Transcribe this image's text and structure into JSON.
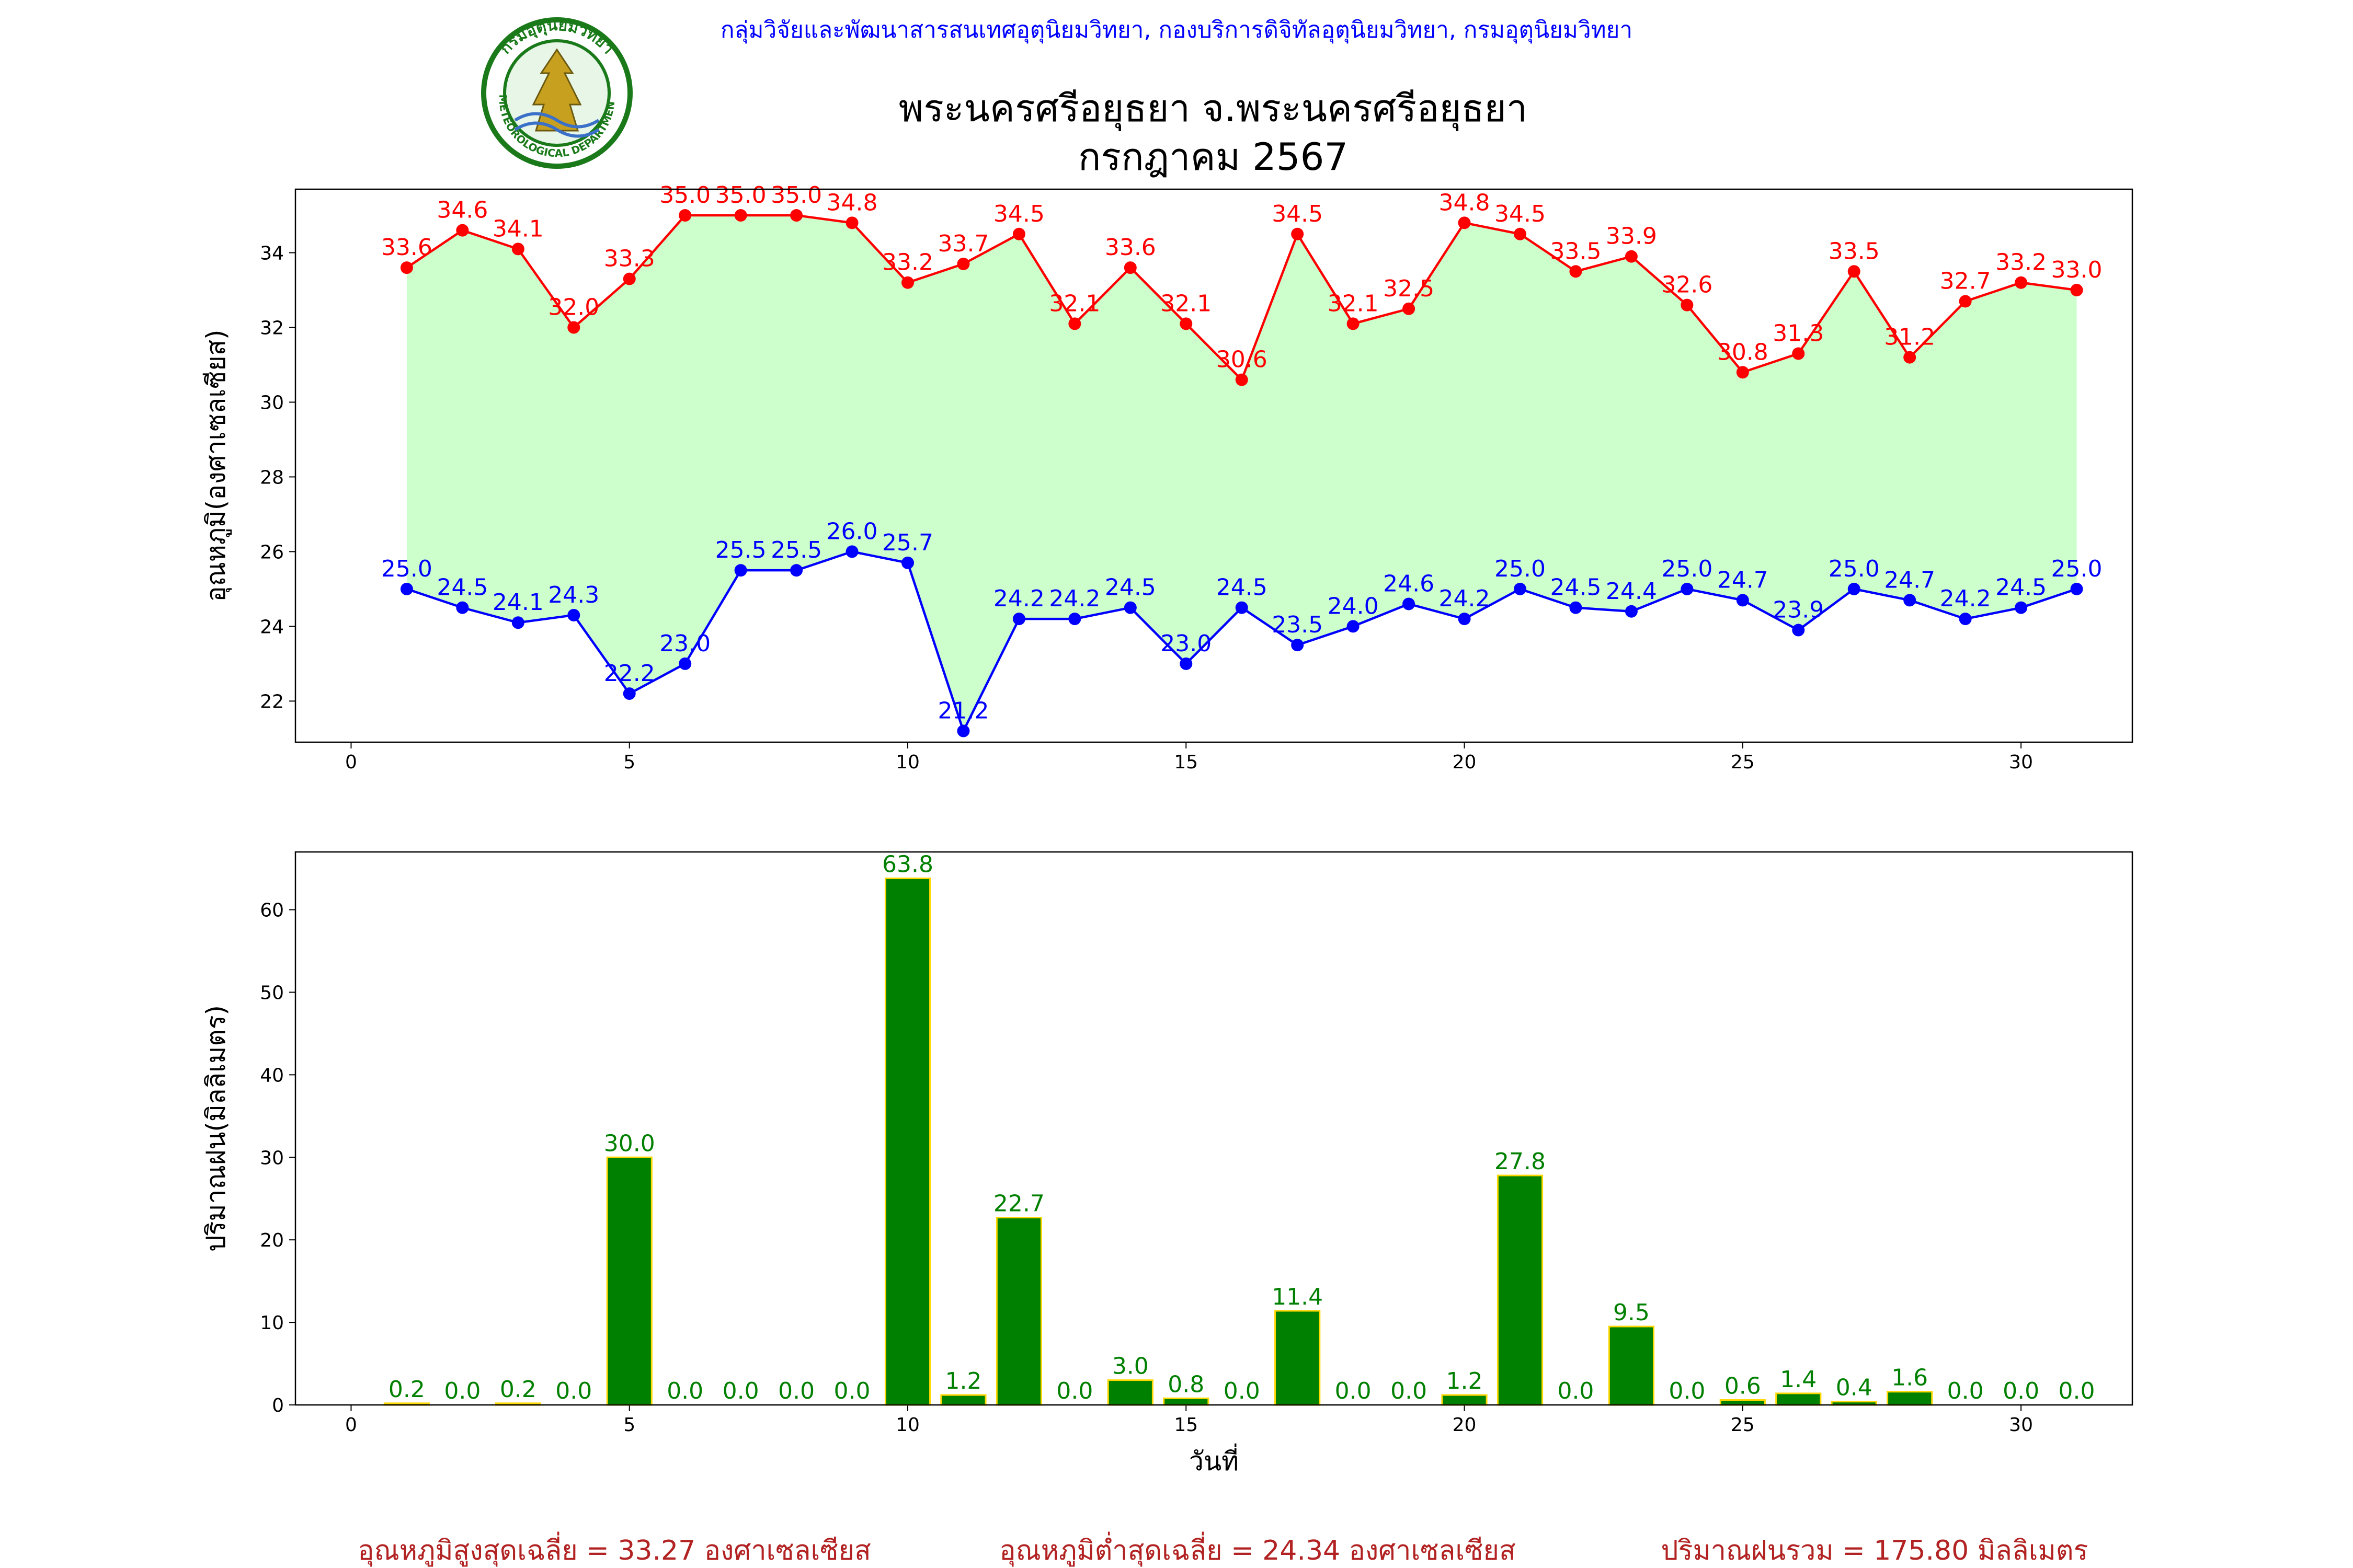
{
  "header": {
    "agency_line": "กลุ่มวิจัยและพัฒนาสารสนเทศอุตุนิยมวิทยา, กองบริการดิจิทัลอุตุนิยมวิทยา, กรมอุตุนิยมวิทยา",
    "title": "พระนครศรีอยุธยา จ.พระนครศรีอยุธยา",
    "subtitle": "กรกฎาคม 2567",
    "logo": {
      "icon": "meteorological-department-seal-icon",
      "top_text": "กรมอุตุนิยมวิทยา",
      "bottom_text": "METEOROLOGICAL DEPARTMENT"
    }
  },
  "colors": {
    "agency_line": "#0000ff",
    "max_temp": "#ff0000",
    "min_temp": "#0000ff",
    "temp_fill": "#ccffcc",
    "rain_bar": "#008000",
    "rain_bar_edge": "#ffd700",
    "rain_label": "#008000",
    "summary": "#b22222"
  },
  "chart_data": [
    {
      "type": "line",
      "ylabel": "อุณหภูมิ(องศาเซลเซียส)",
      "xlabel": "",
      "xlim": [
        -1,
        32
      ],
      "ylim": [
        20.9,
        35.7
      ],
      "xticks": [
        0,
        5,
        10,
        15,
        20,
        25,
        30
      ],
      "yticks": [
        22,
        24,
        26,
        28,
        30,
        32,
        34
      ],
      "x": [
        1,
        2,
        3,
        4,
        5,
        6,
        7,
        8,
        9,
        10,
        11,
        12,
        13,
        14,
        15,
        16,
        17,
        18,
        19,
        20,
        21,
        22,
        23,
        24,
        25,
        26,
        27,
        28,
        29,
        30,
        31
      ],
      "series": [
        {
          "values": [
            33.6,
            34.6,
            34.1,
            32.0,
            33.3,
            35.0,
            35.0,
            35.0,
            34.8,
            33.2,
            33.7,
            34.5,
            32.1,
            33.6,
            32.1,
            30.6,
            34.5,
            32.1,
            32.5,
            34.8,
            34.5,
            33.5,
            33.9,
            32.6,
            30.8,
            31.3,
            33.5,
            31.2,
            32.7,
            33.2,
            33.0
          ]
        },
        {
          "values": [
            25.0,
            24.5,
            24.1,
            24.3,
            22.2,
            23.0,
            25.5,
            25.5,
            26.0,
            25.7,
            21.2,
            24.2,
            24.2,
            24.5,
            23.0,
            24.5,
            23.5,
            24.0,
            24.6,
            24.2,
            25.0,
            24.5,
            24.4,
            25.0,
            24.7,
            23.9,
            25.0,
            24.7,
            24.2,
            24.5,
            25.0
          ]
        }
      ],
      "grid": false,
      "fill_between": true
    },
    {
      "type": "bar",
      "ylabel": "ปริมาณฝน(มิลลิเมตร)",
      "xlabel": "วันที่",
      "xlim": [
        -1,
        32
      ],
      "ylim": [
        0,
        67
      ],
      "xticks": [
        0,
        5,
        10,
        15,
        20,
        25,
        30
      ],
      "yticks": [
        0,
        10,
        20,
        30,
        40,
        50,
        60
      ],
      "categories": [
        1,
        2,
        3,
        4,
        5,
        6,
        7,
        8,
        9,
        10,
        11,
        12,
        13,
        14,
        15,
        16,
        17,
        18,
        19,
        20,
        21,
        22,
        23,
        24,
        25,
        26,
        27,
        28,
        29,
        30,
        31
      ],
      "values": [
        0.2,
        0.0,
        0.2,
        0.0,
        30.0,
        0.0,
        0.0,
        0.0,
        0.0,
        63.8,
        1.2,
        22.7,
        0.0,
        3.0,
        0.8,
        0.0,
        11.4,
        0.0,
        0.0,
        1.2,
        27.8,
        0.0,
        9.5,
        0.0,
        0.6,
        1.4,
        0.4,
        1.6,
        0.0,
        0.0,
        0.0
      ],
      "grid": false
    }
  ],
  "summary": {
    "avg_max": "อุณหภูมิสูงสุดเฉลี่ย = 33.27 องศาเซลเซียส",
    "avg_min": "อุณหภูมิต่ำสุดเฉลี่ย = 24.34 องศาเซลเซียส",
    "total_rain": "ปริมาณฝนรวม = 175.80 มิลลิเมตร"
  }
}
